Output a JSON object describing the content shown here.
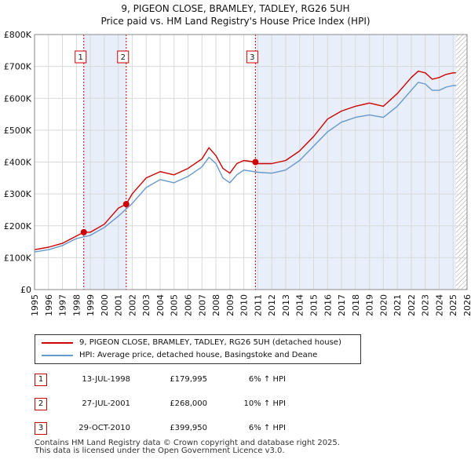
{
  "title_line1": "9, PIGEON CLOSE, BRAMLEY, TADLEY, RG26 5UH",
  "title_line2": "Price paid vs. HM Land Registry's House Price Index (HPI)",
  "colors": {
    "property": "#cc0000",
    "hpi": "#6699cc",
    "shade": "#e8eefa"
  },
  "legend": {
    "property_label": "9, PIGEON CLOSE, BRAMLEY, TADLEY, RG26 5UH (detached house)",
    "hpi_label": "HPI: Average price, detached house, Basingstoke and Deane"
  },
  "sales": [
    {
      "num": "1",
      "date": "13-JUL-1998",
      "price": "£179,995",
      "hpi": "6% ↑ HPI"
    },
    {
      "num": "2",
      "date": "27-JUL-2001",
      "price": "£268,000",
      "hpi": "10% ↑ HPI"
    },
    {
      "num": "3",
      "date": "29-OCT-2010",
      "price": "£399,950",
      "hpi": "6% ↑ HPI"
    }
  ],
  "footer": {
    "line1": "Contains HM Land Registry data © Crown copyright and database right 2025.",
    "line2": "This data is licensed under the Open Government Licence v3.0."
  },
  "chart_data": {
    "type": "line",
    "title": "9, PIGEON CLOSE, BRAMLEY, TADLEY, RG26 5UH — Price paid vs. HM Land Registry's House Price Index (HPI)",
    "xlabel": "",
    "ylabel": "",
    "xlim": [
      1995,
      2026
    ],
    "ylim": [
      0,
      800000
    ],
    "grid": true,
    "xticks": [
      1995,
      1996,
      1997,
      1998,
      1999,
      2000,
      2001,
      2002,
      2003,
      2004,
      2005,
      2006,
      2007,
      2008,
      2009,
      2010,
      2011,
      2012,
      2013,
      2014,
      2015,
      2016,
      2017,
      2018,
      2019,
      2020,
      2021,
      2022,
      2023,
      2024,
      2025,
      2026
    ],
    "yticks": [
      {
        "value": 0,
        "label": "£0"
      },
      {
        "value": 100000,
        "label": "£100K"
      },
      {
        "value": 200000,
        "label": "£200K"
      },
      {
        "value": 300000,
        "label": "£300K"
      },
      {
        "value": 400000,
        "label": "£400K"
      },
      {
        "value": 500000,
        "label": "£500K"
      },
      {
        "value": 600000,
        "label": "£600K"
      },
      {
        "value": 700000,
        "label": "£700K"
      },
      {
        "value": 800000,
        "label": "£800K"
      }
    ],
    "shaded_ranges": [
      [
        1998.53,
        2001.57
      ],
      [
        2010.83,
        2025.2
      ]
    ],
    "hatched_from": 2025.2,
    "series": [
      {
        "name": "9, PIGEON CLOSE, BRAMLEY, TADLEY, RG26 5UH (detached house)",
        "x": [
          1995,
          1996,
          1997,
          1998,
          1998.53,
          1999,
          2000,
          2001,
          2001.57,
          2002,
          2003,
          2004,
          2005,
          2006,
          2007,
          2007.5,
          2008,
          2008.5,
          2009,
          2009.5,
          2010,
          2010.83,
          2011,
          2012,
          2013,
          2014,
          2015,
          2016,
          2017,
          2018,
          2019,
          2020,
          2021,
          2022,
          2022.5,
          2023,
          2023.5,
          2024,
          2024.5,
          2025,
          2025.2
        ],
        "y": [
          125000,
          133000,
          145000,
          168000,
          179995,
          180000,
          205000,
          255000,
          268000,
          300000,
          350000,
          370000,
          360000,
          380000,
          410000,
          445000,
          420000,
          380000,
          365000,
          395000,
          405000,
          399950,
          395000,
          395000,
          405000,
          435000,
          480000,
          535000,
          560000,
          575000,
          585000,
          575000,
          615000,
          665000,
          685000,
          680000,
          660000,
          665000,
          675000,
          680000,
          680000
        ]
      },
      {
        "name": "HPI: Average price, detached house, Basingstoke and Deane",
        "x": [
          1995,
          1996,
          1997,
          1998,
          1999,
          2000,
          2001,
          2002,
          2003,
          2004,
          2005,
          2006,
          2007,
          2007.5,
          2008,
          2008.5,
          2009,
          2009.5,
          2010,
          2011,
          2012,
          2013,
          2014,
          2015,
          2016,
          2017,
          2018,
          2019,
          2020,
          2021,
          2022,
          2022.5,
          2023,
          2023.5,
          2024,
          2024.5,
          2025,
          2025.2
        ],
        "y": [
          118000,
          125000,
          138000,
          160000,
          170000,
          195000,
          230000,
          270000,
          320000,
          345000,
          335000,
          355000,
          385000,
          415000,
          395000,
          350000,
          335000,
          360000,
          375000,
          368000,
          365000,
          375000,
          405000,
          450000,
          495000,
          525000,
          540000,
          548000,
          540000,
          575000,
          625000,
          650000,
          645000,
          625000,
          625000,
          635000,
          640000,
          640000
        ]
      }
    ],
    "sale_points": [
      {
        "label": "1",
        "x": 1998.53,
        "y": 179995
      },
      {
        "label": "2",
        "x": 2001.57,
        "y": 268000
      },
      {
        "label": "3",
        "x": 2010.83,
        "y": 399950
      }
    ]
  }
}
